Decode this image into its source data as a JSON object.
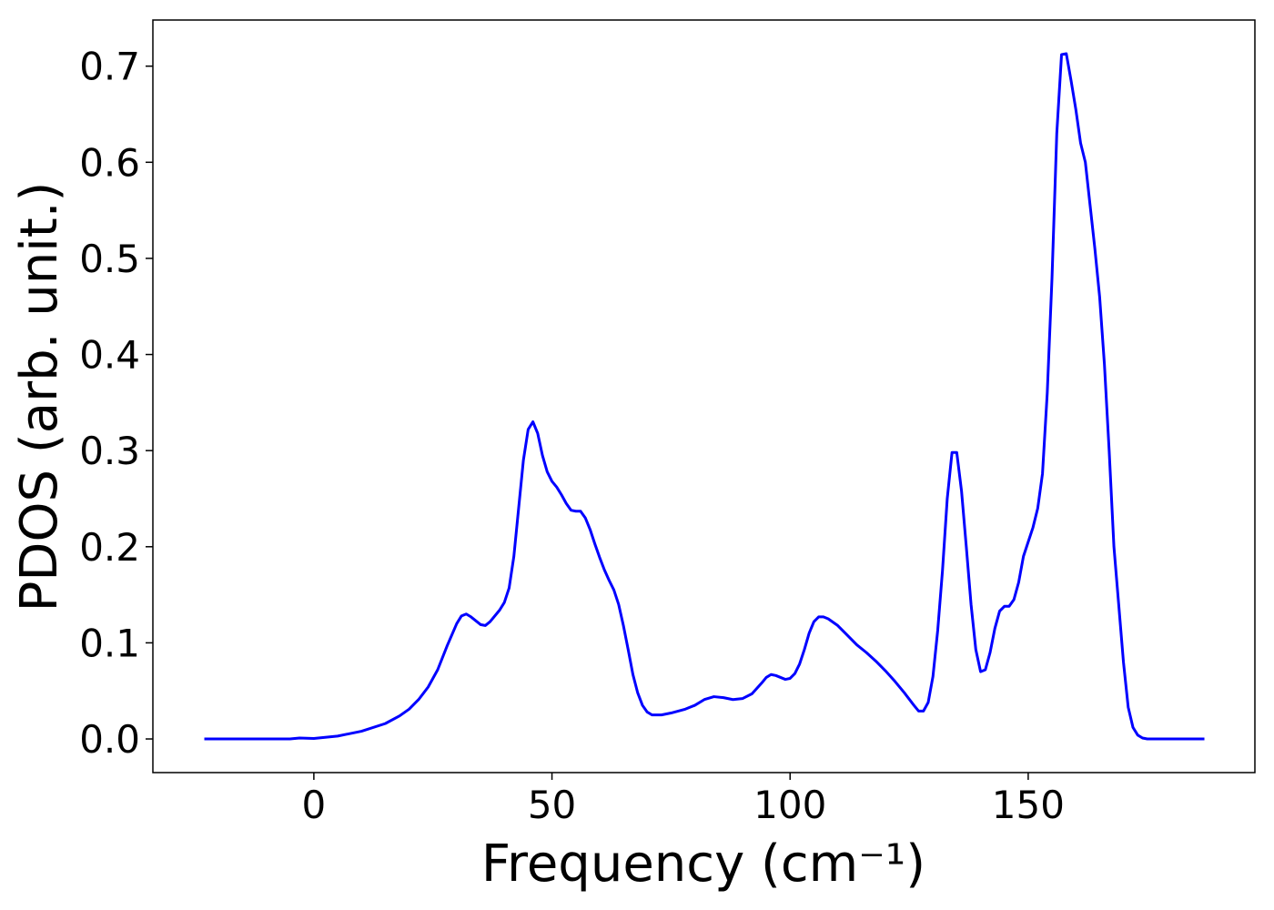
{
  "chart_data": {
    "type": "line",
    "xlabel": "Frequency (cm⁻¹)",
    "ylabel": "PDOS (arb. unit.)",
    "xlim": [
      -33.8,
      197.6
    ],
    "ylim": [
      -0.035,
      0.748
    ],
    "xticks": [
      0,
      50,
      100,
      150
    ],
    "yticks": [
      {
        "value": 0,
        "label": "0.0"
      },
      0.1,
      0.2,
      0.3,
      0.4,
      0.5,
      0.6,
      0.7
    ],
    "series": [
      {
        "name": "PDOS",
        "color": "#0000ff",
        "x": [
          -23,
          -15,
          -5,
          -3,
          0,
          5,
          10,
          15,
          18,
          20,
          22,
          24,
          26,
          28,
          30,
          31,
          32,
          33,
          35,
          36,
          37,
          39,
          40,
          41,
          42,
          43,
          44,
          45,
          46,
          47,
          48,
          49,
          50,
          51,
          52,
          53,
          54,
          55,
          56,
          57,
          58,
          59,
          60,
          61,
          62,
          63,
          64,
          65,
          66,
          67,
          68,
          69,
          70,
          71,
          73,
          75,
          78,
          80,
          82,
          84,
          86,
          88,
          90,
          92,
          94,
          95,
          96,
          97,
          99,
          100,
          101,
          102,
          103,
          104,
          105,
          106,
          107,
          108,
          110,
          112,
          114,
          116,
          118,
          120,
          122,
          124,
          126,
          127,
          128,
          129,
          130,
          131,
          132,
          133,
          134,
          135,
          136,
          137,
          138,
          139,
          140,
          141,
          142,
          143,
          144,
          145,
          146,
          147,
          148,
          149,
          150,
          151,
          152,
          153,
          154,
          155,
          156,
          157,
          158,
          159,
          160,
          161,
          162,
          163,
          164,
          165,
          166,
          167,
          168,
          169,
          170,
          171,
          172,
          173,
          174,
          175,
          187
        ],
        "values": [
          0,
          0,
          0,
          0.001,
          0.0005,
          0.003,
          0.008,
          0.016,
          0.024,
          0.031,
          0.041,
          0.054,
          0.072,
          0.097,
          0.12,
          0.128,
          0.13,
          0.127,
          0.119,
          0.118,
          0.122,
          0.134,
          0.142,
          0.157,
          0.19,
          0.24,
          0.29,
          0.322,
          0.33,
          0.318,
          0.295,
          0.278,
          0.268,
          0.262,
          0.254,
          0.245,
          0.238,
          0.237,
          0.237,
          0.23,
          0.218,
          0.203,
          0.189,
          0.176,
          0.165,
          0.155,
          0.14,
          0.118,
          0.093,
          0.067,
          0.048,
          0.035,
          0.028,
          0.025,
          0.025,
          0.027,
          0.031,
          0.035,
          0.041,
          0.044,
          0.043,
          0.041,
          0.042,
          0.047,
          0.058,
          0.064,
          0.067,
          0.066,
          0.062,
          0.063,
          0.068,
          0.078,
          0.093,
          0.11,
          0.122,
          0.127,
          0.127,
          0.125,
          0.118,
          0.108,
          0.098,
          0.09,
          0.081,
          0.071,
          0.06,
          0.048,
          0.035,
          0.029,
          0.029,
          0.038,
          0.065,
          0.113,
          0.175,
          0.25,
          0.298,
          0.298,
          0.258,
          0.2,
          0.14,
          0.093,
          0.07,
          0.072,
          0.09,
          0.115,
          0.133,
          0.138,
          0.138,
          0.145,
          0.163,
          0.19,
          0.205,
          0.22,
          0.24,
          0.276,
          0.36,
          0.48,
          0.63,
          0.712,
          0.713,
          0.685,
          0.655,
          0.62,
          0.6,
          0.555,
          0.51,
          0.46,
          0.39,
          0.3,
          0.2,
          0.14,
          0.08,
          0.033,
          0.012,
          0.004,
          0.001,
          0,
          0
        ]
      }
    ]
  }
}
